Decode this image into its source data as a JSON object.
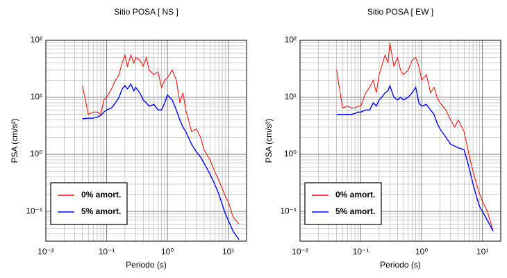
{
  "chart_data": [
    {
      "type": "line",
      "title": "Sitio POSA [ NS ]",
      "xlabel": "Periodo (s)",
      "ylabel": "PSA (cm/s²)",
      "xscale": "log",
      "yscale": "log",
      "grid": true,
      "minor_grid": true,
      "legend": "lower left",
      "xlim": [
        0.01,
        20
      ],
      "ylim": [
        0.03,
        100
      ],
      "xticks": [
        {
          "value": 0.01,
          "label": "10⁻²"
        },
        {
          "value": 0.1,
          "label": "10⁻¹"
        },
        {
          "value": 1,
          "label": "10⁰"
        },
        {
          "value": 10,
          "label": "10¹"
        }
      ],
      "yticks": [
        {
          "value": 0.1,
          "label": "10⁻¹"
        },
        {
          "value": 1,
          "label": "10⁰"
        },
        {
          "value": 10,
          "label": "10¹"
        },
        {
          "value": 100,
          "label": "10²"
        }
      ],
      "x": [
        0.04,
        0.05,
        0.06,
        0.07,
        0.08,
        0.09,
        0.1,
        0.12,
        0.14,
        0.16,
        0.18,
        0.2,
        0.22,
        0.25,
        0.28,
        0.3,
        0.35,
        0.4,
        0.45,
        0.5,
        0.6,
        0.7,
        0.8,
        0.9,
        1,
        1.2,
        1.4,
        1.6,
        1.8,
        2,
        2.5,
        3,
        3.5,
        4,
        5,
        6,
        7,
        8,
        9,
        10,
        12,
        15
      ],
      "series": [
        {
          "name": "0% amort.",
          "color": "#ff0000",
          "values": [
            16,
            5,
            5.5,
            5.5,
            5,
            9,
            10,
            14,
            20,
            25,
            40,
            55,
            35,
            55,
            40,
            50,
            45,
            35,
            50,
            30,
            25,
            28,
            15,
            20,
            22,
            30,
            20,
            8,
            12,
            6,
            2.5,
            2.8,
            2,
            1.2,
            0.8,
            0.5,
            0.35,
            0.25,
            0.18,
            0.15,
            0.08,
            0.06
          ]
        },
        {
          "name": "5% amort.",
          "color": "#0000ff",
          "values": [
            4.2,
            4.3,
            4.3,
            4.5,
            4.8,
            5.5,
            6,
            6.5,
            8,
            10,
            14,
            16,
            14,
            17,
            13,
            15,
            12,
            9,
            8,
            7,
            7.5,
            6,
            6,
            8,
            11,
            9,
            6,
            4,
            3,
            2.5,
            1.5,
            1.1,
            0.9,
            0.7,
            0.45,
            0.3,
            0.2,
            0.13,
            0.09,
            0.07,
            0.045,
            0.032
          ]
        }
      ]
    },
    {
      "type": "line",
      "title": "Sitio POSA [ EW ]",
      "xlabel": "Periodo (s)",
      "ylabel": "PSA (cm/s²)",
      "xscale": "log",
      "yscale": "log",
      "grid": true,
      "minor_grid": true,
      "legend": "lower left",
      "xlim": [
        0.01,
        20
      ],
      "ylim": [
        0.03,
        100
      ],
      "xticks": [
        {
          "value": 0.01,
          "label": "10⁻²"
        },
        {
          "value": 0.1,
          "label": "10⁻¹"
        },
        {
          "value": 1,
          "label": "10⁰"
        },
        {
          "value": 10,
          "label": "10¹"
        }
      ],
      "yticks": [
        {
          "value": 0.1,
          "label": "10⁻¹"
        },
        {
          "value": 1,
          "label": "10⁰"
        },
        {
          "value": 10,
          "label": "10¹"
        },
        {
          "value": 100,
          "label": "10²"
        }
      ],
      "x": [
        0.04,
        0.05,
        0.06,
        0.07,
        0.08,
        0.09,
        0.1,
        0.12,
        0.14,
        0.16,
        0.18,
        0.2,
        0.22,
        0.25,
        0.28,
        0.3,
        0.35,
        0.4,
        0.45,
        0.5,
        0.6,
        0.7,
        0.8,
        0.9,
        1,
        1.2,
        1.4,
        1.6,
        1.8,
        2,
        2.5,
        3,
        3.5,
        4,
        5,
        6,
        7,
        8,
        9,
        10,
        12,
        15
      ],
      "series": [
        {
          "name": "0% amort.",
          "color": "#ff0000",
          "values": [
            30,
            6.5,
            7,
            6.5,
            6.5,
            7,
            7,
            12,
            15,
            20,
            12,
            25,
            35,
            55,
            40,
            90,
            35,
            50,
            30,
            25,
            30,
            45,
            50,
            35,
            20,
            25,
            12,
            15,
            10,
            8,
            6,
            4,
            3,
            4,
            2.5,
            1,
            0.5,
            0.3,
            0.2,
            0.15,
            0.1,
            0.045
          ]
        },
        {
          "name": "5% amort.",
          "color": "#0000ff",
          "values": [
            5,
            5,
            5,
            5,
            5.2,
            5.5,
            5.5,
            6,
            6,
            8,
            7,
            9,
            10,
            12,
            13,
            16,
            10,
            9,
            10,
            9,
            10,
            12,
            15,
            8,
            7,
            7.5,
            6,
            5,
            3.5,
            2.8,
            2,
            1.5,
            1.4,
            1.3,
            1.2,
            0.6,
            0.3,
            0.18,
            0.12,
            0.1,
            0.07,
            0.045
          ]
        }
      ]
    }
  ]
}
